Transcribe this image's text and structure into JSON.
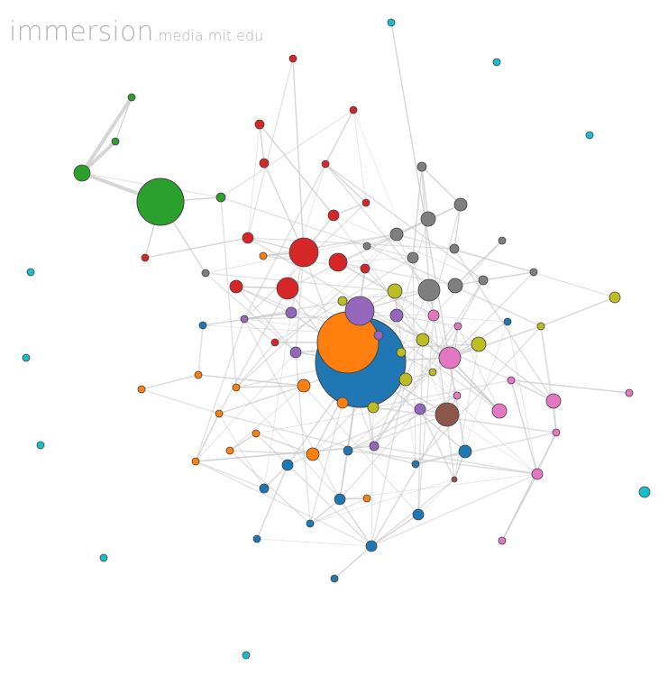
{
  "header": {
    "brand_main": "immersion",
    "brand_domain": ".media.mit.edu"
  },
  "palette": {
    "blue": "#1f77b4",
    "orange": "#ff7f0e",
    "green": "#2ca02c",
    "red": "#d62728",
    "purple": "#9467bd",
    "brown": "#8c564b",
    "pink": "#e377c2",
    "gray": "#7f7f7f",
    "olive": "#bcbd22",
    "cyan": "#17becf",
    "link": "#c8c8c8",
    "node_stroke": "#444444"
  },
  "network": {
    "node_count": 118,
    "groups": [
      "blue",
      "orange",
      "green",
      "red",
      "purple",
      "brown",
      "pink",
      "gray",
      "olive",
      "cyan"
    ]
  }
}
